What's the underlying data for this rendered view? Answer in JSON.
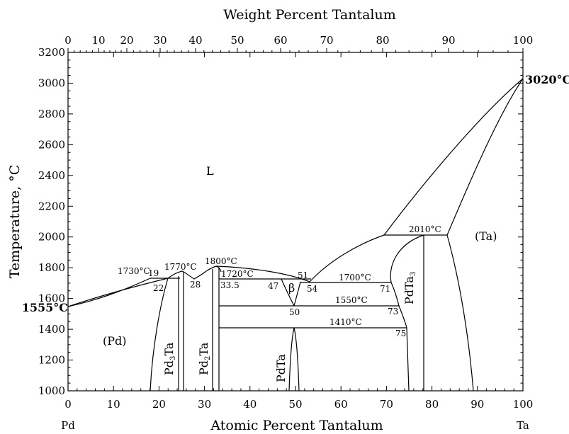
{
  "diagram": {
    "top_axis_title": "Weight Percent Tantalum",
    "bottom_axis_title": "Atomic Percent Tantalum",
    "y_axis_title": "Temperature, °C",
    "left_element": "Pd",
    "right_element": "Ta",
    "x_ticks": [
      "0",
      "10",
      "20",
      "30",
      "40",
      "50",
      "60",
      "70",
      "80",
      "90",
      "100"
    ],
    "top_ticks": [
      "0",
      "10",
      "20",
      "30",
      "40",
      "50",
      "60",
      "70",
      "80",
      "90",
      "100"
    ],
    "y_ticks": [
      "1000",
      "1200",
      "1400",
      "1600",
      "1800",
      "2000",
      "2200",
      "2400",
      "2600",
      "2800",
      "3000",
      "3200"
    ],
    "melting_left": "1555°C",
    "melting_right": "3020°C",
    "phases": {
      "liquid": "L",
      "pd": "(Pd)",
      "ta": "(Ta)",
      "beta": "β",
      "pd3ta": {
        "base": "Pd",
        "sub": "3",
        "tail": "Ta"
      },
      "pd2ta": {
        "base": "Pd",
        "sub": "2",
        "tail": "Ta"
      },
      "pdta": "PdTa",
      "pdta3": {
        "base": "PdTa",
        "sub": "3"
      }
    },
    "invariants": {
      "t1730": "1730°C",
      "t1770": "1770°C",
      "t1800": "1800°C",
      "t1720": "1720°C",
      "t1700": "1700°C",
      "t1550": "1550°C",
      "t1410": "1410°C",
      "t2010": "2010°C"
    },
    "compositions": {
      "c19": "19",
      "c22": "22",
      "c28": "28",
      "c33_5": "33.5",
      "c47": "47",
      "c51": "51",
      "c54": "54",
      "c50": "50",
      "c71": "71",
      "c73": "73",
      "c75": "75"
    }
  }
}
